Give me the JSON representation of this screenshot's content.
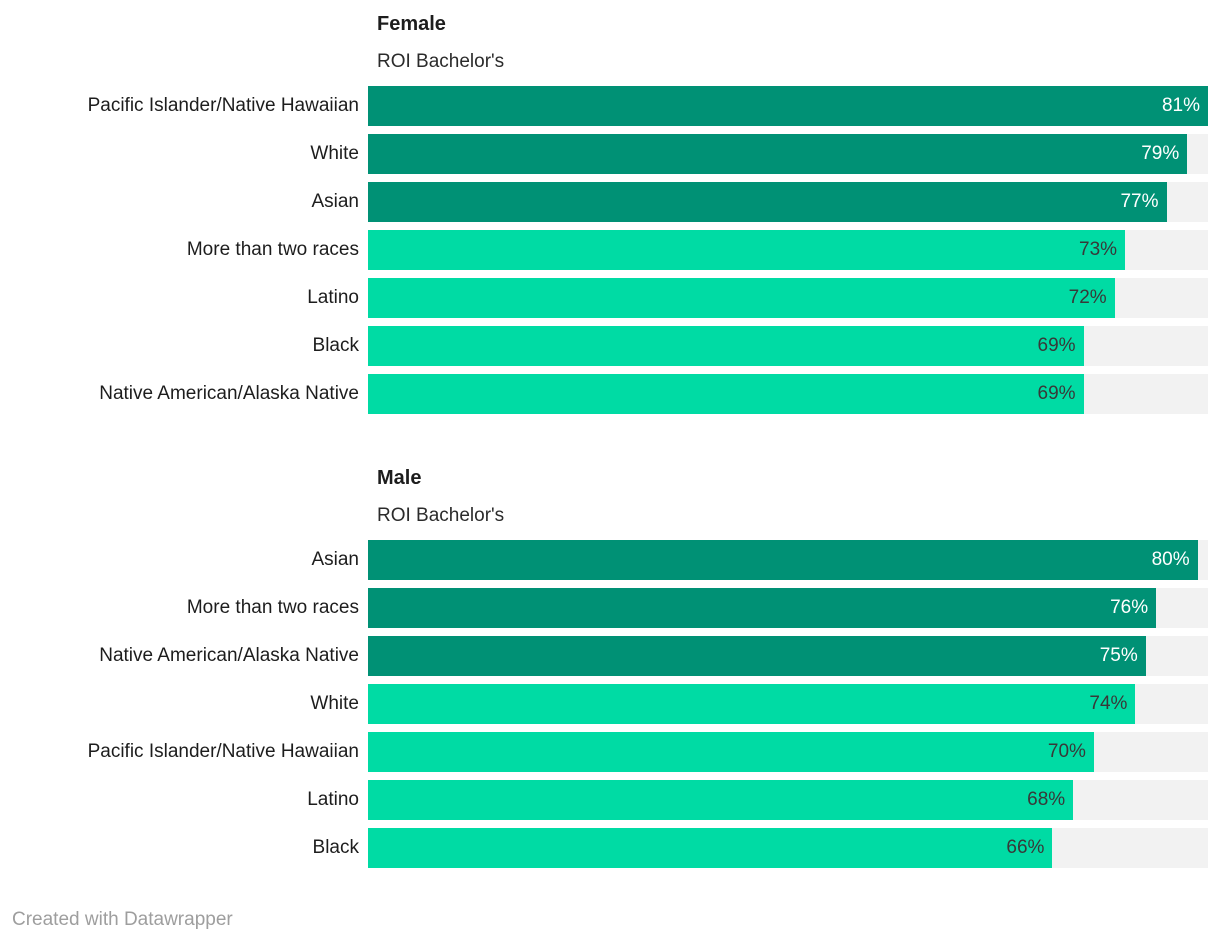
{
  "colors": {
    "bar_emphasized": "#009175",
    "bar_base": "#00dba4",
    "track": "#f2f2f2",
    "value_on_dark": "#ffffff",
    "value_on_light": "#383838",
    "label_text": "#1d1d1d",
    "footer_text": "#9e9e9e"
  },
  "scale": {
    "max": 81
  },
  "footer": {
    "credit": "Created with Datawrapper"
  },
  "chart_data": [
    {
      "type": "bar",
      "orientation": "horizontal",
      "title": "Female",
      "subtitle": "ROI Bachelor's",
      "xlim": [
        0,
        81
      ],
      "grid": false,
      "legend": false,
      "categories": [
        "Pacific Islander/Native Hawaiian",
        "White",
        "Asian",
        "More than two races",
        "Latino",
        "Black",
        "Native American/Alaska Native"
      ],
      "values": [
        81,
        79,
        77,
        73,
        72,
        69,
        69
      ],
      "value_labels": [
        "81%",
        "79%",
        "77%",
        "73%",
        "72%",
        "69%",
        "69%"
      ],
      "emphasized": [
        true,
        true,
        true,
        false,
        false,
        false,
        false
      ]
    },
    {
      "type": "bar",
      "orientation": "horizontal",
      "title": "Male",
      "subtitle": "ROI Bachelor's",
      "xlim": [
        0,
        81
      ],
      "grid": false,
      "legend": false,
      "categories": [
        "Asian",
        "More than two races",
        "Native American/Alaska Native",
        "White",
        "Pacific Islander/Native Hawaiian",
        "Latino",
        "Black"
      ],
      "values": [
        80,
        76,
        75,
        74,
        70,
        68,
        66
      ],
      "value_labels": [
        "80%",
        "76%",
        "75%",
        "74%",
        "70%",
        "68%",
        "66%"
      ],
      "emphasized": [
        true,
        true,
        true,
        false,
        false,
        false,
        false
      ]
    }
  ]
}
